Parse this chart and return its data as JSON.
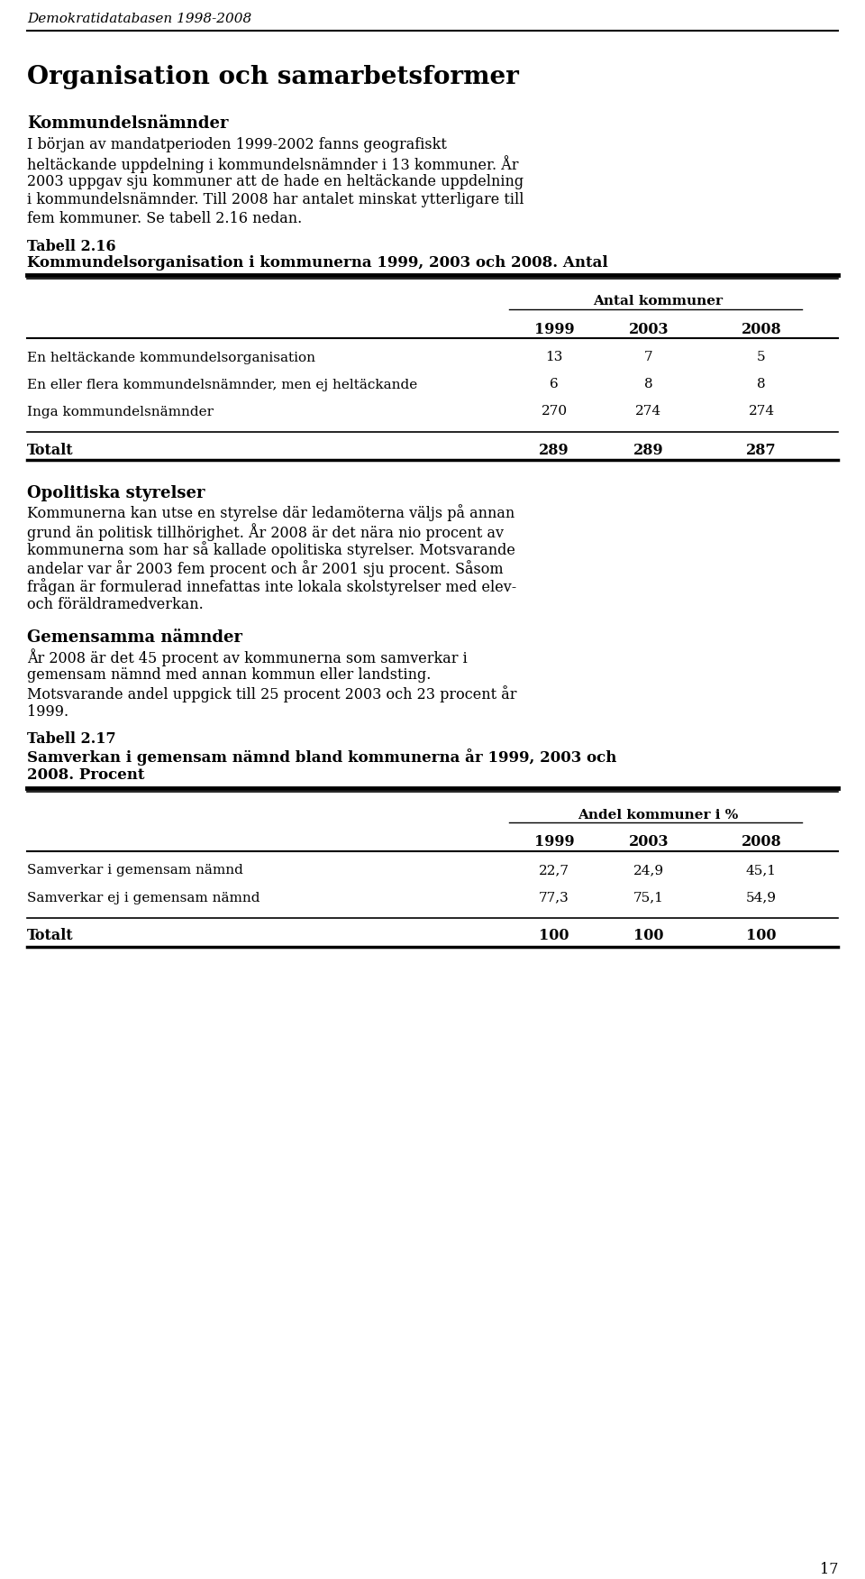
{
  "header_italic": "Demokratidatabasen 1998-2008",
  "section_title": "Organisation och samarbetsformer",
  "subsection1_title": "Kommundelsnämnder",
  "subsection1_body_lines": [
    "I början av mandatperioden 1999-2002 fanns geografiskt",
    "heltäckande uppdelning i kommundelsnämnder i 13 kommuner. År",
    "2003 uppgav sju kommuner att de hade en heltäckande uppdelning",
    "i kommundelsnämnder. Till 2008 har antalet minskat ytterligare till",
    "fem kommuner. Se tabell 2.16 nedan."
  ],
  "tabell1_label": "Tabell 2.16",
  "tabell1_title": "Kommundelsorganisation i kommunerna 1999, 2003 och 2008. Antal",
  "tabell1_header_group": "Antal kommuner",
  "tabell1_years": [
    "1999",
    "2003",
    "2008"
  ],
  "tabell1_rows": [
    {
      "label": "En heltäckande kommundelsorganisation",
      "values": [
        "13",
        "7",
        "5"
      ]
    },
    {
      "label": "En eller flera kommundelsnämnder, men ej heltäckande",
      "values": [
        "6",
        "8",
        "8"
      ]
    },
    {
      "label": "Inga kommundelsnämnder",
      "values": [
        "270",
        "274",
        "274"
      ]
    }
  ],
  "tabell1_total_label": "Totalt",
  "tabell1_total_values": [
    "289",
    "289",
    "287"
  ],
  "subsection2_title": "Opolitiska styrelser",
  "subsection2_body_lines": [
    "Kommunerna kan utse en styrelse där ledamöterna väljs på annan",
    "grund än politisk tillhörighet. År 2008 är det nära nio procent av",
    "kommunerna som har så kallade opolitiska styrelser. Motsvarande",
    "andelar var år 2003 fem procent och år 2001 sju procent. Såsom",
    "frågan är formulerad innefattas inte lokala skolstyrelser med elev-",
    "och föräldramedverkan."
  ],
  "subsection3_title": "Gemensamma nämnder",
  "subsection3_body_lines": [
    "År 2008 är det 45 procent av kommunerna som samverkar i",
    "gemensam nämnd med annan kommun eller landsting.",
    "Motsvarande andel uppgick till 25 procent 2003 och 23 procent år",
    "1999."
  ],
  "tabell2_label": "Tabell 2.17",
  "tabell2_title_lines": [
    "Samverkan i gemensam nämnd bland kommunerna år 1999, 2003 och",
    "2008. Procent"
  ],
  "tabell2_header_group": "Andel kommuner i %",
  "tabell2_years": [
    "1999",
    "2003",
    "2008"
  ],
  "tabell2_rows": [
    {
      "label": "Samverkar i gemensam nämnd",
      "values": [
        "22,7",
        "24,9",
        "45,1"
      ]
    },
    {
      "label": "Samverkar ej i gemensam nämnd",
      "values": [
        "77,3",
        "75,1",
        "54,9"
      ]
    }
  ],
  "tabell2_total_label": "Totalt",
  "tabell2_total_values": [
    "100",
    "100",
    "100"
  ],
  "page_number": "17",
  "background_color": "#ffffff",
  "text_color": "#000000"
}
